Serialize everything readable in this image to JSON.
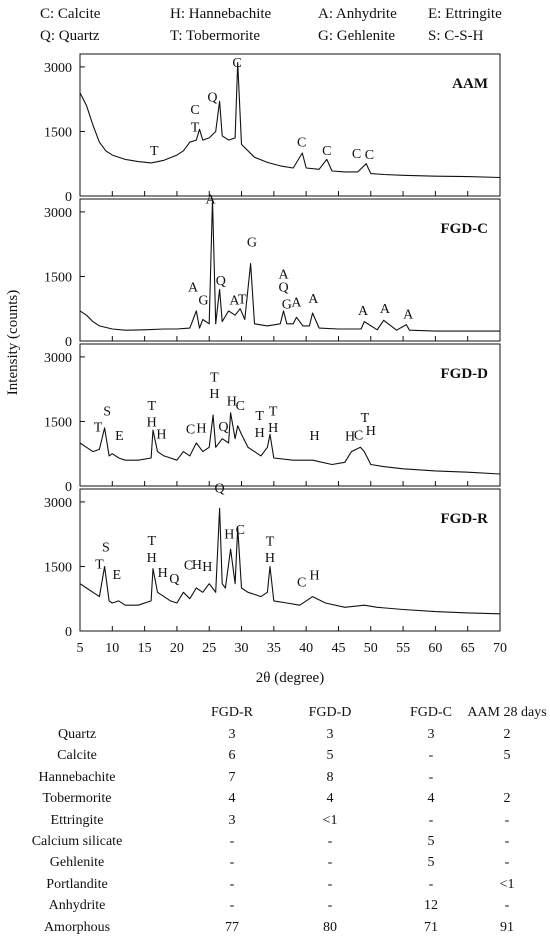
{
  "legend": [
    "C: Calcite",
    "H: Hannebachite",
    "A: Anhydrite",
    "E: Ettringite",
    "Q: Quartz",
    "T: Tobermorite",
    "G: Gehlenite",
    "S: C-S-H"
  ],
  "chart_data": {
    "type": "line",
    "xlabel": "2θ (degree)",
    "ylabel": "Intensity (counts)",
    "xlim": [
      5,
      70
    ],
    "ylim": [
      0,
      3300
    ],
    "xticks": [
      "5",
      "10",
      "15",
      "20",
      "25",
      "30",
      "35",
      "40",
      "45",
      "50",
      "55",
      "60",
      "65",
      "70"
    ],
    "yticks": [
      "0",
      "1500",
      "3000"
    ],
    "series": [
      {
        "name": "AAM",
        "x": [
          5,
          6,
          7,
          8,
          9,
          10,
          12,
          14,
          16,
          18,
          20,
          21,
          22,
          23,
          23.5,
          24,
          25,
          26,
          26.6,
          27,
          28,
          29,
          29.4,
          30,
          32,
          34,
          36,
          38,
          39.4,
          40,
          42,
          43.2,
          44,
          46,
          48,
          49.3,
          50,
          52,
          55,
          60,
          65,
          70
        ],
        "y": [
          2400,
          2100,
          1650,
          1250,
          1050,
          950,
          850,
          800,
          770,
          830,
          950,
          1050,
          1250,
          1300,
          1550,
          1300,
          1350,
          1500,
          2200,
          1400,
          1300,
          1350,
          3100,
          1200,
          900,
          780,
          700,
          650,
          1000,
          650,
          620,
          850,
          580,
          560,
          560,
          750,
          520,
          500,
          480,
          460,
          450,
          430
        ]
      },
      {
        "name": "FGD-C",
        "x": [
          5,
          6,
          7,
          8,
          10,
          12,
          15,
          18,
          20,
          22,
          23,
          23.5,
          24,
          25,
          25.5,
          26,
          26.6,
          27,
          28,
          29,
          29.8,
          30.5,
          31.4,
          32,
          34,
          36,
          36.5,
          37,
          38,
          38.5,
          39.5,
          40.5,
          41,
          42,
          45,
          48.5,
          49,
          51,
          52,
          54,
          55.5,
          56,
          60,
          65,
          70
        ],
        "y": [
          700,
          600,
          450,
          350,
          280,
          250,
          260,
          280,
          280,
          300,
          700,
          300,
          500,
          400,
          3300,
          400,
          1200,
          450,
          700,
          600,
          750,
          500,
          1800,
          400,
          350,
          400,
          700,
          400,
          400,
          550,
          350,
          350,
          650,
          300,
          280,
          280,
          450,
          260,
          480,
          250,
          380,
          250,
          230,
          230,
          230
        ]
      },
      {
        "name": "FGD-D",
        "x": [
          5,
          6,
          7,
          8,
          8.8,
          9.5,
          10,
          11,
          12,
          14,
          16,
          16.3,
          17,
          18,
          19,
          20,
          21,
          22,
          23,
          24,
          25,
          25.6,
          26,
          27,
          28,
          28.3,
          29,
          29.4,
          30,
          31,
          32,
          33,
          34,
          34.4,
          35,
          38,
          41,
          44,
          46,
          47,
          48.4,
          49,
          50,
          52,
          55,
          60,
          65,
          70
        ],
        "y": [
          1000,
          900,
          800,
          850,
          1350,
          700,
          750,
          650,
          600,
          600,
          650,
          1300,
          800,
          700,
          650,
          600,
          800,
          700,
          1000,
          800,
          900,
          1650,
          900,
          1100,
          1000,
          1700,
          1100,
          1400,
          1200,
          900,
          800,
          700,
          900,
          1200,
          650,
          600,
          600,
          500,
          550,
          800,
          900,
          800,
          500,
          450,
          400,
          350,
          320,
          280
        ]
      },
      {
        "name": "FGD-R",
        "x": [
          5,
          6,
          7,
          8,
          8.8,
          9.5,
          10,
          11,
          12,
          14,
          16,
          16.3,
          17,
          18,
          19,
          20,
          21,
          22,
          23,
          24,
          25,
          25.5,
          26,
          26.6,
          27,
          27.5,
          28.3,
          29,
          29.4,
          30,
          31,
          32,
          33,
          34,
          34.4,
          35,
          37,
          39,
          40,
          41,
          43,
          46,
          49,
          51,
          55,
          60,
          65,
          70
        ],
        "y": [
          1100,
          1000,
          900,
          800,
          1500,
          700,
          650,
          700,
          600,
          600,
          700,
          1450,
          900,
          800,
          700,
          650,
          900,
          750,
          1000,
          900,
          1100,
          1000,
          900,
          2850,
          1100,
          1000,
          1900,
          1100,
          2400,
          1000,
          900,
          850,
          800,
          900,
          1500,
          700,
          650,
          600,
          700,
          800,
          650,
          550,
          600,
          550,
          500,
          450,
          420,
          400
        ]
      }
    ],
    "peak_labels": [
      [
        {
          "x": 16.5,
          "t": "T",
          "h": 950
        },
        {
          "x": 22.8,
          "t": "C",
          "h": 1900
        },
        {
          "x": 22.8,
          "t": "T",
          "h": 1500
        },
        {
          "x": 25.5,
          "t": "Q",
          "h": 2200
        },
        {
          "x": 29.3,
          "t": "C",
          "h": 3000
        },
        {
          "x": 39.3,
          "t": "C",
          "h": 1150
        },
        {
          "x": 43.2,
          "t": "C",
          "h": 950
        },
        {
          "x": 47.8,
          "t": "C",
          "h": 880
        },
        {
          "x": 49.8,
          "t": "C",
          "h": 860
        }
      ],
      [
        {
          "x": 25.2,
          "t": "A",
          "h": 3200
        },
        {
          "x": 31.6,
          "t": "G",
          "h": 2200
        },
        {
          "x": 22.5,
          "t": "A",
          "h": 1150
        },
        {
          "x": 24.1,
          "t": "G",
          "h": 850
        },
        {
          "x": 26.8,
          "t": "Q",
          "h": 1300
        },
        {
          "x": 28.9,
          "t": "A",
          "h": 850
        },
        {
          "x": 30.1,
          "t": "T",
          "h": 870
        },
        {
          "x": 36.5,
          "t": "A",
          "h": 1450
        },
        {
          "x": 36.5,
          "t": "Q",
          "h": 1150
        },
        {
          "x": 37,
          "t": "G",
          "h": 750
        },
        {
          "x": 38.5,
          "t": "A",
          "h": 800
        },
        {
          "x": 41.1,
          "t": "A",
          "h": 880
        },
        {
          "x": 48.8,
          "t": "A",
          "h": 600
        },
        {
          "x": 52.2,
          "t": "A",
          "h": 650
        },
        {
          "x": 55.8,
          "t": "A",
          "h": 520
        }
      ],
      [
        {
          "x": 9.2,
          "t": "S",
          "h": 1640
        },
        {
          "x": 7.8,
          "t": "T",
          "h": 1270
        },
        {
          "x": 11.1,
          "t": "E",
          "h": 1070
        },
        {
          "x": 16.1,
          "t": "T",
          "h": 1770
        },
        {
          "x": 16.1,
          "t": "H",
          "h": 1380
        },
        {
          "x": 17.6,
          "t": "H",
          "h": 1100
        },
        {
          "x": 22.1,
          "t": "C",
          "h": 1220
        },
        {
          "x": 23.8,
          "t": "H",
          "h": 1240
        },
        {
          "x": 25.8,
          "t": "T",
          "h": 2430
        },
        {
          "x": 25.8,
          "t": "H",
          "h": 2040
        },
        {
          "x": 27.2,
          "t": "Q",
          "h": 1280
        },
        {
          "x": 28.5,
          "t": "H",
          "h": 1870
        },
        {
          "x": 29.8,
          "t": "C",
          "h": 1770
        },
        {
          "x": 32.8,
          "t": "T",
          "h": 1530
        },
        {
          "x": 32.8,
          "t": "H",
          "h": 1140
        },
        {
          "x": 34.9,
          "t": "T",
          "h": 1640
        },
        {
          "x": 34.9,
          "t": "H",
          "h": 1250
        },
        {
          "x": 41.3,
          "t": "H",
          "h": 1070
        },
        {
          "x": 46.8,
          "t": "H",
          "h": 1060
        },
        {
          "x": 48.1,
          "t": "C",
          "h": 1080
        },
        {
          "x": 49.1,
          "t": "T",
          "h": 1490
        },
        {
          "x": 50,
          "t": "H",
          "h": 1190
        }
      ],
      [
        {
          "x": 9,
          "t": "S",
          "h": 1850
        },
        {
          "x": 8,
          "t": "T",
          "h": 1450
        },
        {
          "x": 10.7,
          "t": "E",
          "h": 1210
        },
        {
          "x": 16.1,
          "t": "T",
          "h": 2000
        },
        {
          "x": 16.1,
          "t": "H",
          "h": 1600
        },
        {
          "x": 17.8,
          "t": "H",
          "h": 1250
        },
        {
          "x": 19.6,
          "t": "Q",
          "h": 1120
        },
        {
          "x": 21.8,
          "t": "C",
          "h": 1430
        },
        {
          "x": 23.1,
          "t": "H",
          "h": 1440
        },
        {
          "x": 24.7,
          "t": "H",
          "h": 1400
        },
        {
          "x": 26.6,
          "t": "Q",
          "h": 3220
        },
        {
          "x": 28.1,
          "t": "H",
          "h": 2150
        },
        {
          "x": 29.8,
          "t": "C",
          "h": 2250
        },
        {
          "x": 34.4,
          "t": "T",
          "h": 1990
        },
        {
          "x": 34.4,
          "t": "H",
          "h": 1600
        },
        {
          "x": 39.3,
          "t": "C",
          "h": 1030
        },
        {
          "x": 41.3,
          "t": "H",
          "h": 1200
        }
      ]
    ]
  },
  "table": {
    "columns": [
      "FGD-R",
      "FGD-D",
      "FGD-C",
      "AAM 28 days"
    ],
    "rows": [
      {
        "label": "Quartz",
        "values": [
          "3",
          "3",
          "3",
          "2"
        ]
      },
      {
        "label": "Calcite",
        "values": [
          "6",
          "5",
          "-",
          "5"
        ]
      },
      {
        "label": "Hannebachite",
        "values": [
          "7",
          "8",
          "-",
          ""
        ]
      },
      {
        "label": "Tobermorite",
        "values": [
          "4",
          "4",
          "4",
          "2"
        ]
      },
      {
        "label": "Ettringite",
        "values": [
          "3",
          "<1",
          "-",
          "-"
        ]
      },
      {
        "label": "Calcium silicate",
        "values": [
          "-",
          "-",
          "5",
          "-"
        ]
      },
      {
        "label": "Gehlenite",
        "values": [
          "-",
          "-",
          "5",
          "-"
        ]
      },
      {
        "label": "Portlandite",
        "values": [
          "-",
          "-",
          "-",
          "<1"
        ]
      },
      {
        "label": "Anhydrite",
        "values": [
          "-",
          "-",
          "12",
          "-"
        ]
      },
      {
        "label": "Amorphous",
        "values": [
          "77",
          "80",
          "71",
          "91"
        ]
      }
    ]
  },
  "colors": {
    "line": "#111111",
    "axis": "#111111",
    "background": "#ffffff"
  }
}
